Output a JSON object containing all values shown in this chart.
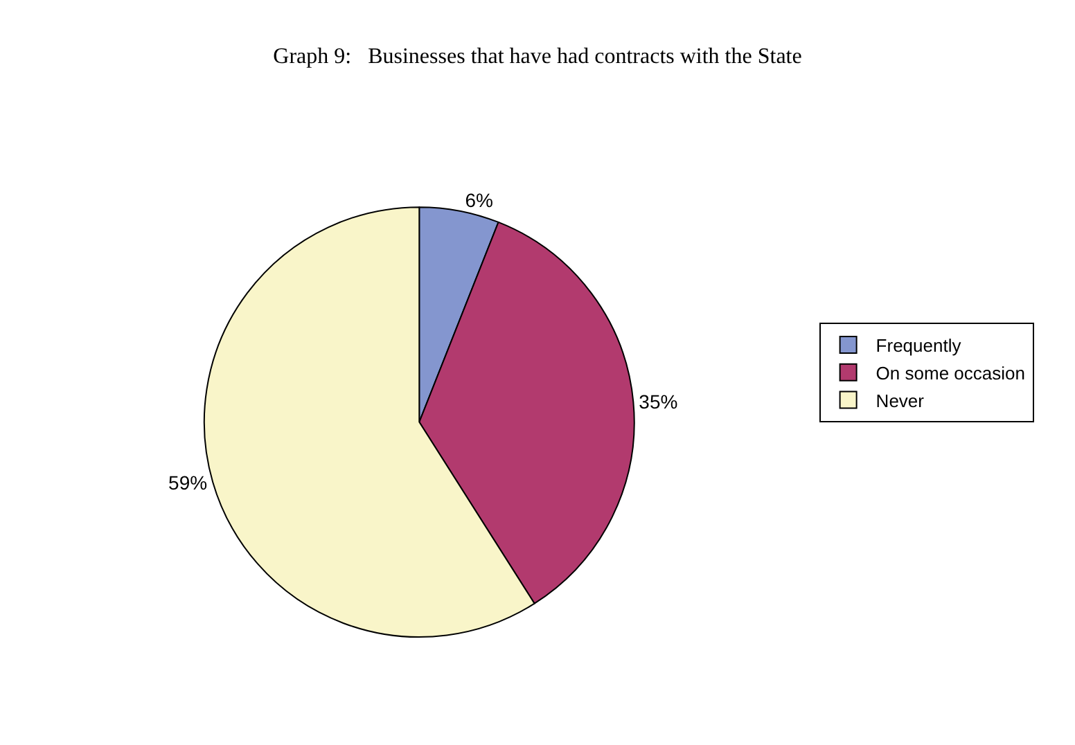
{
  "chart_data": {
    "type": "pie",
    "title": "Graph 9:   Businesses that have had contracts with the State",
    "categories": [
      "Frequently",
      "On some occasion",
      "Never"
    ],
    "values": [
      6,
      35,
      59
    ],
    "colors": [
      "#8496cf",
      "#b23a6e",
      "#f9f5c9"
    ],
    "value_labels": [
      "6%",
      "35%",
      "59%"
    ],
    "legend": "right"
  }
}
